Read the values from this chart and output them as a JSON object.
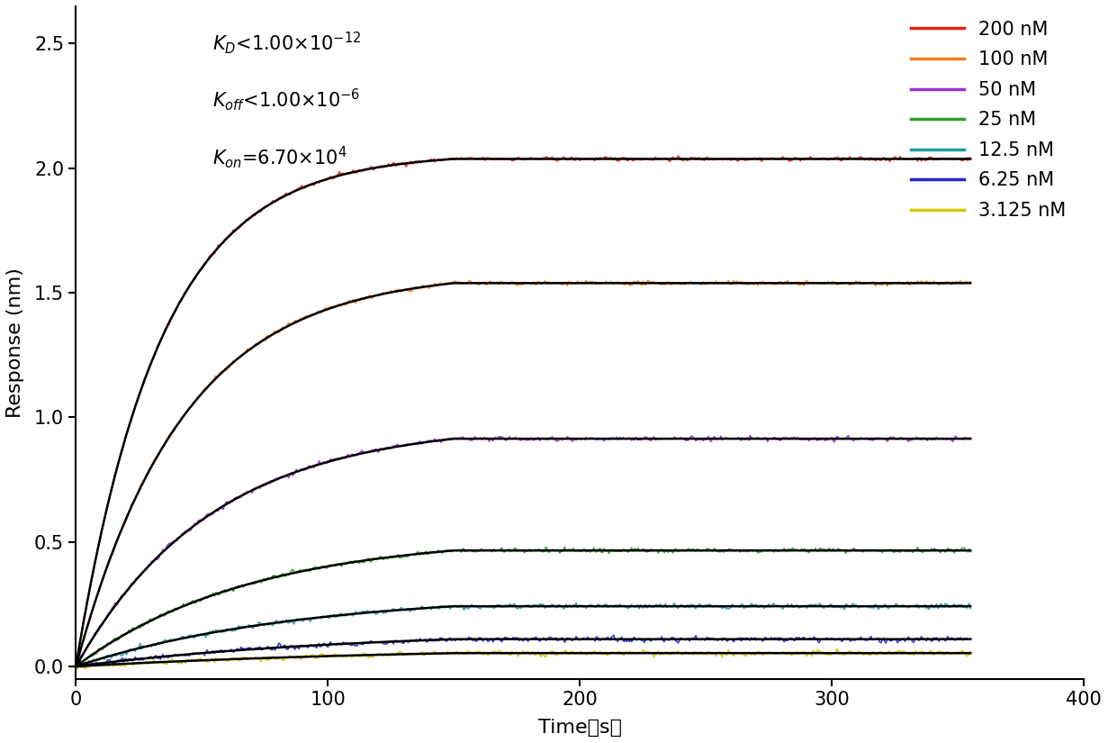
{
  "xlabel": "Time（s）",
  "ylabel": "Response (nm)",
  "xlim": [
    0,
    400
  ],
  "ylim": [
    -0.05,
    2.65
  ],
  "yticks": [
    0.0,
    0.5,
    1.0,
    1.5,
    2.0,
    2.5
  ],
  "xticks": [
    0,
    100,
    200,
    300,
    400
  ],
  "concentrations": [
    200,
    100,
    50,
    25,
    12.5,
    6.25,
    3.125
  ],
  "colors": [
    "#e8221a",
    "#f07f16",
    "#9b30d0",
    "#2e9e2e",
    "#1fa0a0",
    "#2828c8",
    "#d4c800"
  ],
  "plateau_values": [
    2.06,
    1.585,
    0.975,
    0.525,
    0.295,
    0.148,
    0.082
  ],
  "association_end": 150,
  "total_time": 355,
  "kon": 67000.0,
  "legend_labels": [
    "200 nM",
    "100 nM",
    "50 nM",
    "25 nM",
    "12.5 nM",
    "6.25 nM",
    "3.125 nM"
  ],
  "noise_scale": 0.005,
  "linewidth_data": 1.2,
  "linewidth_fit": 1.8
}
